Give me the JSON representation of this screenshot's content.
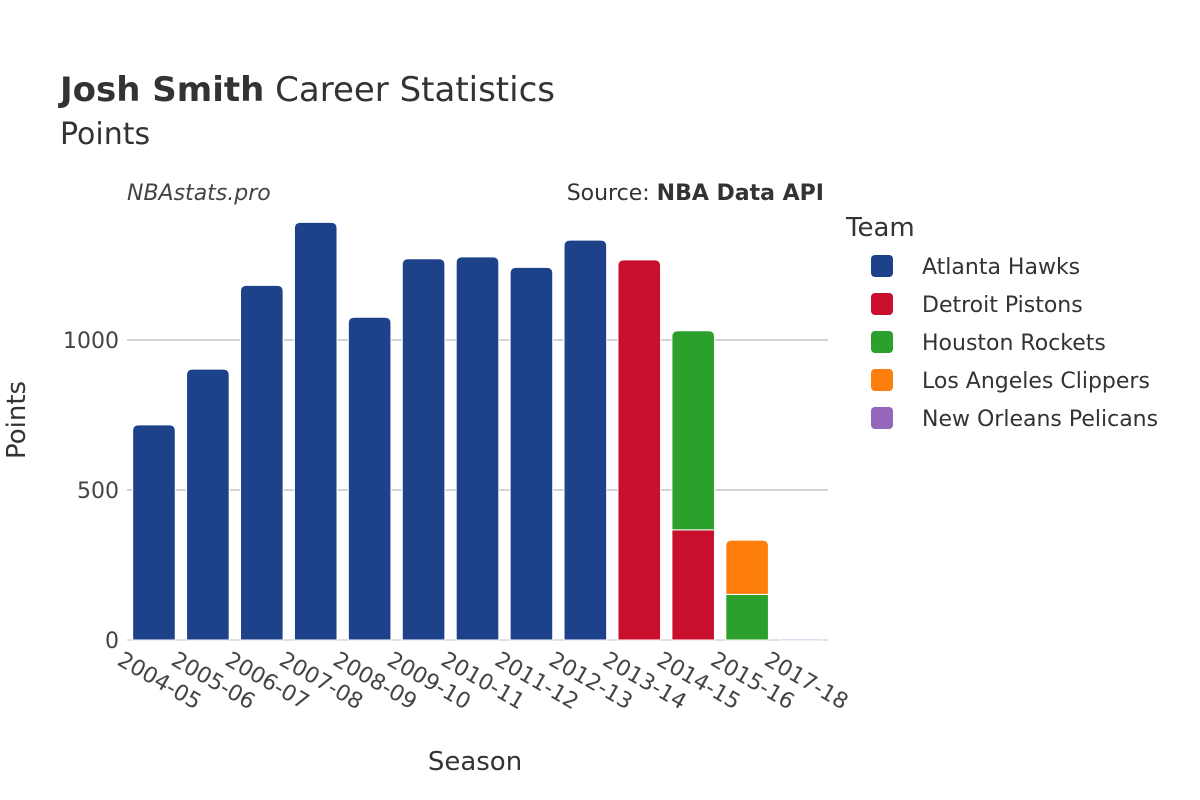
{
  "header": {
    "title_name": "Josh Smith",
    "title_rest": " Career Statistics",
    "subtitle": "Points",
    "watermark": "NBAstats.pro",
    "source_prefix": "Source: ",
    "source_name": "NBA Data API"
  },
  "legend": {
    "title": "Team",
    "items": [
      {
        "label": "Atlanta Hawks",
        "color": "#1d428a"
      },
      {
        "label": "Detroit Pistons",
        "color": "#c8102e"
      },
      {
        "label": "Houston Rockets",
        "color": "#2ca02c"
      },
      {
        "label": "Los Angeles Clippers",
        "color": "#ff7f0e"
      },
      {
        "label": "New Orleans Pelicans",
        "color": "#9467bd"
      }
    ]
  },
  "chart_data": {
    "type": "bar",
    "stacked": true,
    "xlabel": "Season",
    "ylabel": "Points",
    "ylim": [
      0,
      1400
    ],
    "yticks": [
      0,
      500,
      1000
    ],
    "grid": true,
    "legend_position": "right",
    "categories": [
      "2004-05",
      "2005-06",
      "2006-07",
      "2007-08",
      "2008-09",
      "2009-10",
      "2010-11",
      "2011-12",
      "2012-13",
      "2013-14",
      "2014-15",
      "2015-16",
      "2017-18"
    ],
    "series": [
      {
        "name": "Atlanta Hawks",
        "color": "#1d428a",
        "values": [
          717,
          903,
          1182,
          1392,
          1076,
          1271,
          1277,
          1242,
          1333,
          0,
          0,
          0,
          0
        ]
      },
      {
        "name": "Detroit Pistons",
        "color": "#c8102e",
        "values": [
          0,
          0,
          0,
          0,
          0,
          0,
          0,
          0,
          0,
          1267,
          367,
          0,
          0
        ]
      },
      {
        "name": "Houston Rockets",
        "color": "#2ca02c",
        "values": [
          0,
          0,
          0,
          0,
          0,
          0,
          0,
          0,
          0,
          0,
          664,
          152,
          0
        ]
      },
      {
        "name": "Los Angeles Clippers",
        "color": "#ff7f0e",
        "values": [
          0,
          0,
          0,
          0,
          0,
          0,
          0,
          0,
          0,
          0,
          0,
          181,
          0
        ]
      },
      {
        "name": "New Orleans Pelicans",
        "color": "#9467bd",
        "values": [
          0,
          0,
          0,
          0,
          0,
          0,
          0,
          0,
          0,
          0,
          0,
          0,
          4
        ]
      }
    ]
  }
}
